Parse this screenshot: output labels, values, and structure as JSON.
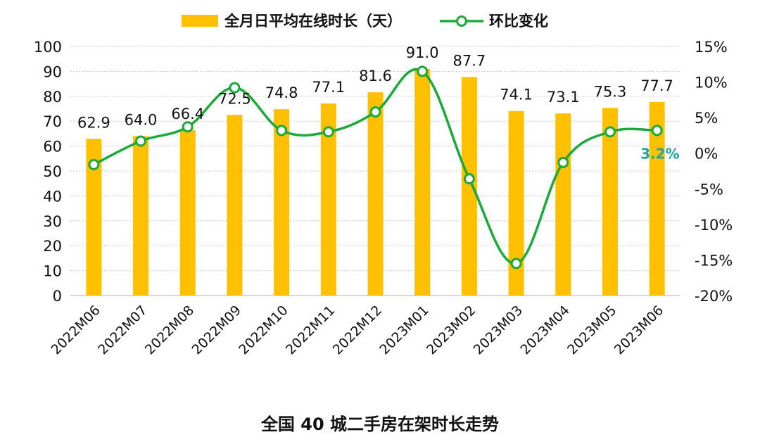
{
  "chart_data": {
    "type": "bar",
    "title": "",
    "categories": [
      "2022M06",
      "2022M07",
      "2022M08",
      "2022M09",
      "2022M10",
      "2022M11",
      "2022M12",
      "2023M01",
      "2023M02",
      "2023M03",
      "2023M04",
      "2023M05",
      "2023M06"
    ],
    "series": [
      {
        "name": "全月日平均在线时长（天）",
        "type": "bar",
        "axis": "left",
        "color": "#FFC000",
        "values": [
          62.9,
          64.0,
          66.4,
          72.5,
          74.8,
          77.1,
          81.6,
          91.0,
          87.7,
          74.1,
          73.1,
          75.3,
          77.7
        ],
        "labels": [
          "62.9",
          "64.0",
          "66.4",
          "72.5",
          "74.8",
          "77.1",
          "81.6",
          "91.0",
          "87.7",
          "74.1",
          "73.1",
          "75.3",
          "77.7"
        ]
      },
      {
        "name": "环比变化",
        "type": "line",
        "axis": "right",
        "color": "#1BAA3A",
        "values": [
          -1.6,
          1.7,
          3.7,
          9.2,
          3.2,
          3.0,
          5.8,
          11.5,
          -3.6,
          -15.5,
          -1.3,
          3.0,
          3.2
        ],
        "last_label": "3.2%",
        "last_label_color": "#1FA6A0"
      }
    ],
    "y_left": {
      "min": 0,
      "max": 100,
      "ticks": [
        "0",
        "10",
        "20",
        "30",
        "40",
        "50",
        "60",
        "70",
        "80",
        "90",
        "100"
      ]
    },
    "y_right": {
      "min": -20,
      "max": 15,
      "ticks": [
        "-20%",
        "-15%",
        "-10%",
        "-5%",
        "0%",
        "5%",
        "10%",
        "15%"
      ]
    },
    "grid": true,
    "legend_position": "top"
  },
  "caption": "全国 40 城二手房在架时长走势"
}
